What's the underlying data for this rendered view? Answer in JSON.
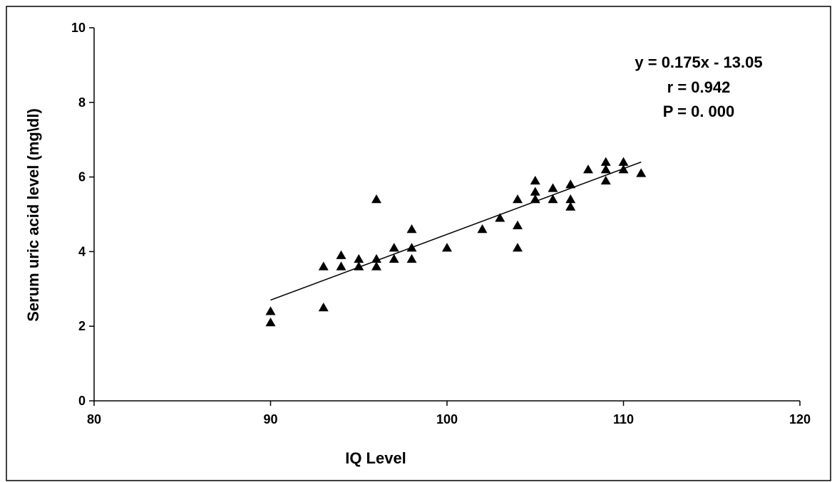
{
  "chart_data": {
    "type": "scatter",
    "xlabel": "IQ Level",
    "ylabel": "Serum  uric  acid  level  (mg\\dl)",
    "xlim": [
      80,
      120
    ],
    "ylim": [
      0,
      10
    ],
    "x_ticks": [
      80,
      90,
      100,
      110,
      120
    ],
    "y_ticks": [
      0,
      2,
      4,
      6,
      8,
      10
    ],
    "grid": false,
    "legend": "none",
    "marker": "triangle",
    "color": "#000000",
    "points": [
      {
        "x": 90,
        "y": 2.4
      },
      {
        "x": 90,
        "y": 2.1
      },
      {
        "x": 93,
        "y": 3.6
      },
      {
        "x": 93,
        "y": 2.5
      },
      {
        "x": 94,
        "y": 3.9
      },
      {
        "x": 94,
        "y": 3.6
      },
      {
        "x": 95,
        "y": 3.8
      },
      {
        "x": 95,
        "y": 3.6
      },
      {
        "x": 96,
        "y": 5.4
      },
      {
        "x": 96,
        "y": 3.8
      },
      {
        "x": 96,
        "y": 3.6
      },
      {
        "x": 97,
        "y": 4.1
      },
      {
        "x": 97,
        "y": 3.8
      },
      {
        "x": 98,
        "y": 4.6
      },
      {
        "x": 98,
        "y": 4.1
      },
      {
        "x": 98,
        "y": 3.8
      },
      {
        "x": 100,
        "y": 4.1
      },
      {
        "x": 102,
        "y": 4.6
      },
      {
        "x": 103,
        "y": 4.9
      },
      {
        "x": 104,
        "y": 5.4
      },
      {
        "x": 104,
        "y": 4.7
      },
      {
        "x": 104,
        "y": 4.1
      },
      {
        "x": 105,
        "y": 5.9
      },
      {
        "x": 105,
        "y": 5.6
      },
      {
        "x": 105,
        "y": 5.4
      },
      {
        "x": 106,
        "y": 5.7
      },
      {
        "x": 106,
        "y": 5.4
      },
      {
        "x": 107,
        "y": 5.8
      },
      {
        "x": 107,
        "y": 5.4
      },
      {
        "x": 107,
        "y": 5.2
      },
      {
        "x": 108,
        "y": 6.2
      },
      {
        "x": 109,
        "y": 6.4
      },
      {
        "x": 109,
        "y": 6.2
      },
      {
        "x": 109,
        "y": 5.9
      },
      {
        "x": 110,
        "y": 6.4
      },
      {
        "x": 110,
        "y": 6.2
      },
      {
        "x": 111,
        "y": 6.1
      }
    ],
    "trendline": {
      "x": [
        90,
        111
      ],
      "y": [
        2.7,
        6.4
      ]
    },
    "annotations": [
      "y = 0.175x - 13.05",
      "r = 0.942",
      "P = 0. 000"
    ]
  }
}
